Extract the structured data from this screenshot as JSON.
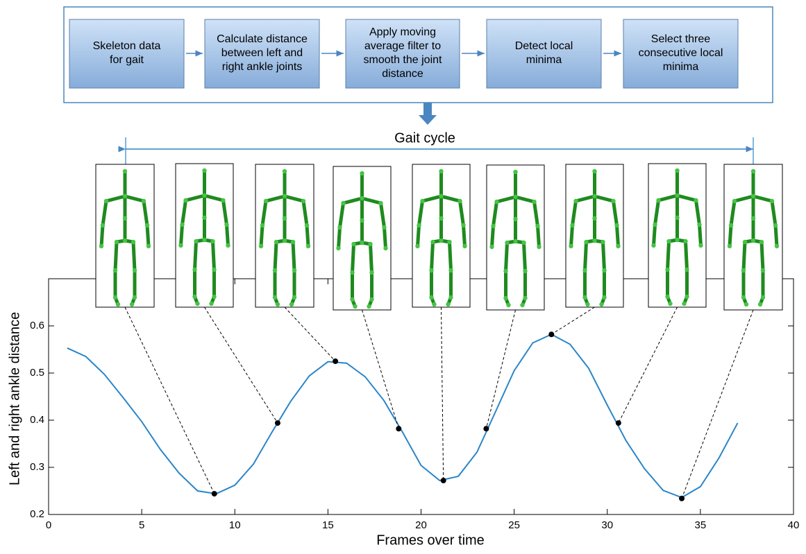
{
  "flowchart": {
    "steps": [
      [
        "Skeleton data",
        "for gait"
      ],
      [
        "Calculate distance",
        "between left and",
        "right ankle joints"
      ],
      [
        "Apply moving",
        "average filter to",
        "smooth the joint",
        "distance"
      ],
      [
        "Detect local",
        "minima"
      ],
      [
        "Select three",
        "consecutive local",
        "minima"
      ]
    ]
  },
  "gait_cycle_label": "Gait cycle",
  "chart_data": {
    "type": "line",
    "xlabel": "Frames over time",
    "ylabel": "Left and right ankle distance",
    "x": [
      1,
      2,
      3,
      4,
      5,
      6,
      7,
      8,
      9,
      10,
      11,
      12,
      13,
      14,
      15,
      16,
      17,
      18,
      19,
      20,
      21,
      22,
      23,
      24,
      25,
      26,
      27,
      28,
      29,
      30,
      31,
      32,
      33,
      34,
      35,
      36,
      37
    ],
    "series": [
      {
        "color": "#2a85c8",
        "values": [
          0.553,
          0.535,
          0.497,
          0.448,
          0.397,
          0.338,
          0.288,
          0.25,
          0.244,
          0.262,
          0.307,
          0.375,
          0.44,
          0.494,
          0.524,
          0.521,
          0.492,
          0.442,
          0.375,
          0.304,
          0.272,
          0.281,
          0.332,
          0.418,
          0.505,
          0.564,
          0.582,
          0.561,
          0.51,
          0.432,
          0.357,
          0.297,
          0.251,
          0.236,
          0.259,
          0.32,
          0.394
        ]
      }
    ],
    "points": {
      "color": "#000000",
      "x": [
        8.9,
        12.3,
        15.4,
        18.8,
        21.2,
        23.5,
        27,
        30.6,
        34
      ],
      "y": [
        0.244,
        0.394,
        0.525,
        0.382,
        0.272,
        0.382,
        0.582,
        0.394,
        0.234
      ]
    },
    "xlim": [
      0,
      40
    ],
    "xticks": [
      0,
      5,
      10,
      15,
      20,
      25,
      30,
      35,
      40
    ],
    "ylim": [
      0.2,
      0.7
    ],
    "yticks": [
      0.2,
      0.3,
      0.4,
      0.5,
      0.6
    ]
  }
}
